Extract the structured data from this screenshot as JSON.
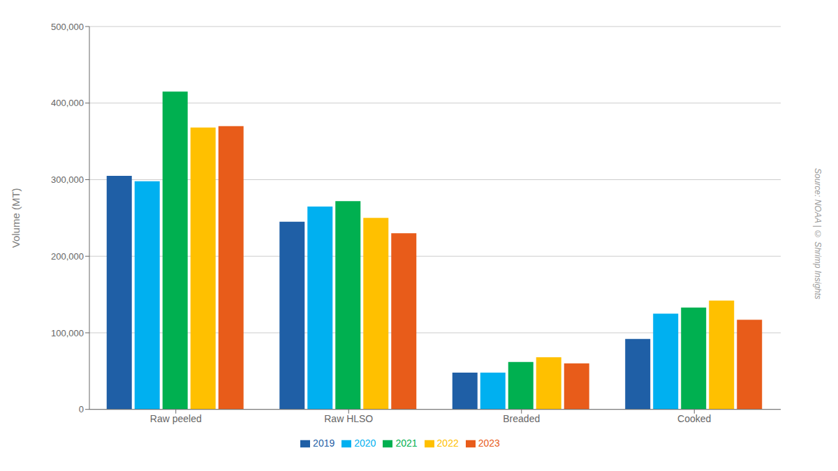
{
  "chart_data": {
    "type": "bar",
    "categories": [
      "Raw peeled",
      "Raw HLSO",
      "Breaded",
      "Cooked"
    ],
    "series": [
      {
        "name": "2019",
        "color": "#1f5fa6",
        "values": [
          305000,
          245000,
          48000,
          92000
        ]
      },
      {
        "name": "2020",
        "color": "#00b0f0",
        "values": [
          298000,
          265000,
          48000,
          125000
        ]
      },
      {
        "name": "2021",
        "color": "#00b050",
        "values": [
          415000,
          272000,
          62000,
          133000
        ]
      },
      {
        "name": "2022",
        "color": "#ffc000",
        "values": [
          368000,
          250000,
          68000,
          142000
        ]
      },
      {
        "name": "2023",
        "color": "#e85c1a",
        "values": [
          370000,
          230000,
          60000,
          117000
        ]
      }
    ],
    "ylabel": "Volume (MT)",
    "ylim": [
      0,
      500000
    ],
    "yticks": [
      0,
      {
        "value": 100000,
        "label": "100,000"
      },
      {
        "value": 200000,
        "label": "200,000"
      },
      {
        "value": 300000,
        "label": "300,000"
      },
      {
        "value": 400000,
        "label": "400,000"
      },
      {
        "value": 500000,
        "label": "500,000"
      }
    ],
    "grid": true,
    "legend": "bottom",
    "annotations": [
      "Source: NOAA | © Shrimp Insights"
    ]
  }
}
